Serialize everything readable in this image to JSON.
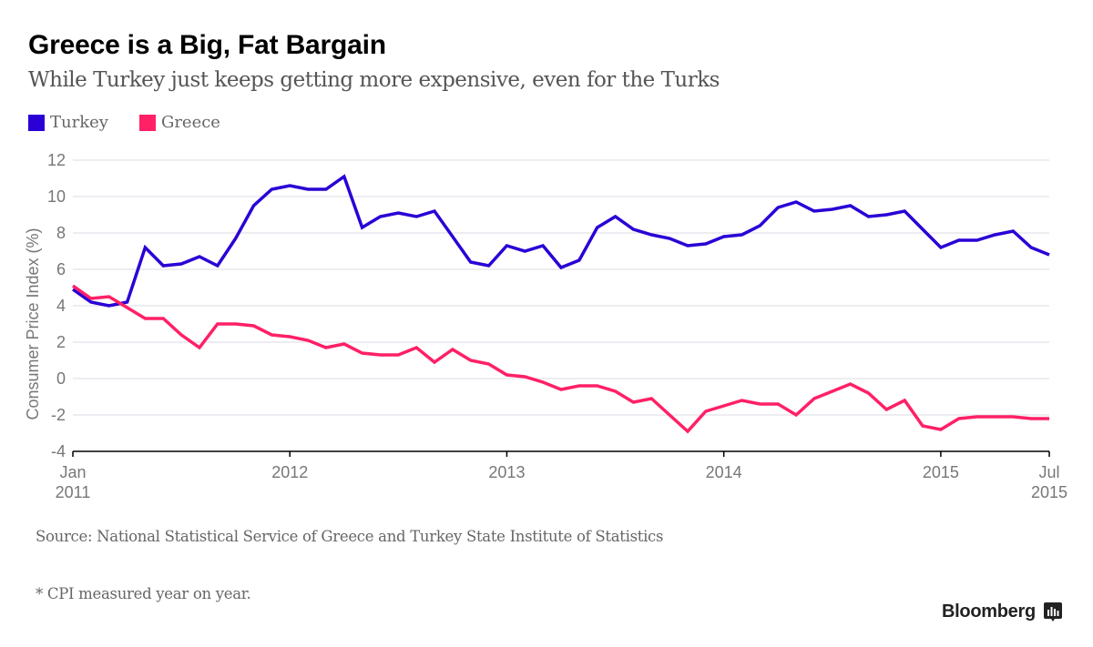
{
  "header": {
    "title": "Greece is a Big, Fat Bargain",
    "subtitle": "While Turkey just keeps getting more expensive, even for the Turks"
  },
  "legend": [
    {
      "label": "Turkey",
      "color": "#2a00d6"
    },
    {
      "label": "Greece",
      "color": "#ff2066"
    }
  ],
  "footer": {
    "source": "Source: National Statistical Service of Greece and Turkey State Institute of Statistics",
    "note": "* CPI measured year on year.",
    "brand": "Bloomberg",
    "brand_icon": "bloomberg-chart-icon"
  },
  "chart_data": {
    "type": "line",
    "title": "Greece is a Big, Fat Bargain",
    "subtitle": "While Turkey just keeps getting more expensive, even for the Turks",
    "xlabel": "",
    "ylabel": "Consumer Price Index (%)",
    "ylim": [
      -4,
      12
    ],
    "yticks": [
      12,
      10,
      8,
      6,
      4,
      2,
      0,
      -2,
      -4
    ],
    "grid": true,
    "legend_position": "top-left",
    "x_start": "2011-01",
    "x_end": "2015-07",
    "xticks": [
      {
        "month_index": 0,
        "label": [
          "Jan",
          "2011"
        ]
      },
      {
        "month_index": 12,
        "label": [
          "2012"
        ]
      },
      {
        "month_index": 24,
        "label": [
          "2013"
        ]
      },
      {
        "month_index": 36,
        "label": [
          "2014"
        ]
      },
      {
        "month_index": 48,
        "label": [
          "2015"
        ]
      },
      {
        "month_index": 54,
        "label": [
          "Jul",
          "2015"
        ]
      }
    ],
    "x": [
      "2011-01",
      "2011-02",
      "2011-03",
      "2011-04",
      "2011-05",
      "2011-06",
      "2011-07",
      "2011-08",
      "2011-09",
      "2011-10",
      "2011-11",
      "2011-12",
      "2012-01",
      "2012-02",
      "2012-03",
      "2012-04",
      "2012-05",
      "2012-06",
      "2012-07",
      "2012-08",
      "2012-09",
      "2012-10",
      "2012-11",
      "2012-12",
      "2013-01",
      "2013-02",
      "2013-03",
      "2013-04",
      "2013-05",
      "2013-06",
      "2013-07",
      "2013-08",
      "2013-09",
      "2013-10",
      "2013-11",
      "2013-12",
      "2014-01",
      "2014-02",
      "2014-03",
      "2014-04",
      "2014-05",
      "2014-06",
      "2014-07",
      "2014-08",
      "2014-09",
      "2014-10",
      "2014-11",
      "2014-12",
      "2015-01",
      "2015-02",
      "2015-03",
      "2015-04",
      "2015-05",
      "2015-06",
      "2015-07"
    ],
    "series": [
      {
        "name": "Turkey",
        "color": "#2a00d6",
        "values": [
          4.9,
          4.2,
          4.0,
          4.2,
          7.2,
          6.2,
          6.3,
          6.7,
          6.2,
          7.7,
          9.5,
          10.4,
          10.6,
          10.4,
          10.4,
          11.1,
          8.3,
          8.9,
          9.1,
          8.9,
          9.2,
          7.8,
          6.4,
          6.2,
          7.3,
          7.0,
          7.3,
          6.1,
          6.5,
          8.3,
          8.9,
          8.2,
          7.9,
          7.7,
          7.3,
          7.4,
          7.8,
          7.9,
          8.4,
          9.4,
          9.7,
          9.2,
          9.3,
          9.5,
          8.9,
          9.0,
          9.2,
          8.2,
          7.2,
          7.6,
          7.6,
          7.9,
          8.1,
          7.2,
          6.8
        ]
      },
      {
        "name": "Greece",
        "color": "#ff2066",
        "values": [
          5.1,
          4.4,
          4.5,
          3.9,
          3.3,
          3.3,
          2.4,
          1.7,
          3.0,
          3.0,
          2.9,
          2.4,
          2.3,
          2.1,
          1.7,
          1.9,
          1.4,
          1.3,
          1.3,
          1.7,
          0.9,
          1.6,
          1.0,
          0.8,
          0.2,
          0.1,
          -0.2,
          -0.6,
          -0.4,
          -0.4,
          -0.7,
          -1.3,
          -1.1,
          -2.0,
          -2.9,
          -1.8,
          -1.5,
          -1.2,
          -1.4,
          -1.4,
          -2.0,
          -1.1,
          -0.7,
          -0.3,
          -0.8,
          -1.7,
          -1.2,
          -2.6,
          -2.8,
          -2.2,
          -2.1,
          -2.1,
          -2.1,
          -2.2,
          -2.2
        ]
      }
    ]
  }
}
